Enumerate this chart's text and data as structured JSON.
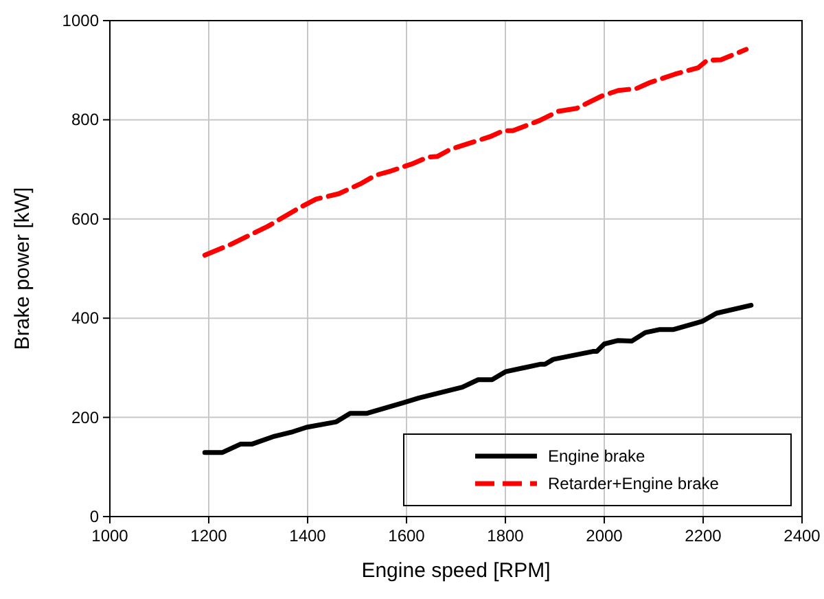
{
  "chart_data": {
    "type": "line",
    "xlabel": "Engine speed [RPM]",
    "ylabel": "Brake power [kW]",
    "xlim": [
      1000,
      2400
    ],
    "xticks": [
      1000,
      1200,
      1400,
      1600,
      1800,
      2000,
      2200,
      2400
    ],
    "ylim": [
      0,
      1000
    ],
    "yticks": [
      0,
      200,
      400,
      600,
      800,
      1000
    ],
    "grid": true,
    "legend": "bottom right",
    "marker": "none",
    "series": [
      {
        "name": "Engine brake",
        "color": "#000000",
        "line_style": "solid",
        "x": [
          1192,
          1227,
          1264,
          1287,
          1333,
          1370,
          1398,
          1458,
          1486,
          1519,
          1592,
          1625,
          1713,
          1745,
          1773,
          1800,
          1870,
          1880,
          1897,
          1977,
          1985,
          2000,
          2028,
          2056,
          2083,
          2111,
          2139,
          2199,
          2227,
          2297
        ],
        "values": [
          129,
          129,
          146,
          146,
          162,
          171,
          180,
          191,
          208,
          208,
          229,
          239,
          261,
          276,
          276,
          292,
          307,
          307,
          317,
          333,
          333,
          348,
          355,
          354,
          371,
          377,
          377,
          394,
          410,
          426
        ]
      },
      {
        "name": "Retarder+Engine brake",
        "color": "#ff0000",
        "line_style": "dashed",
        "x": [
          1192,
          1245,
          1319,
          1384,
          1417,
          1463,
          1509,
          1537,
          1569,
          1611,
          1644,
          1662,
          1690,
          1769,
          1796,
          1815,
          1870,
          1907,
          1944,
          1995,
          2028,
          2065,
          2092,
          2143,
          2190,
          2208,
          2236,
          2287
        ],
        "values": [
          527,
          549,
          585,
          623,
          640,
          651,
          672,
          688,
          697,
          711,
          725,
          726,
          741,
          766,
          778,
          778,
          799,
          817,
          823,
          848,
          859,
          863,
          875,
          892,
          905,
          920,
          921,
          942
        ]
      }
    ]
  }
}
